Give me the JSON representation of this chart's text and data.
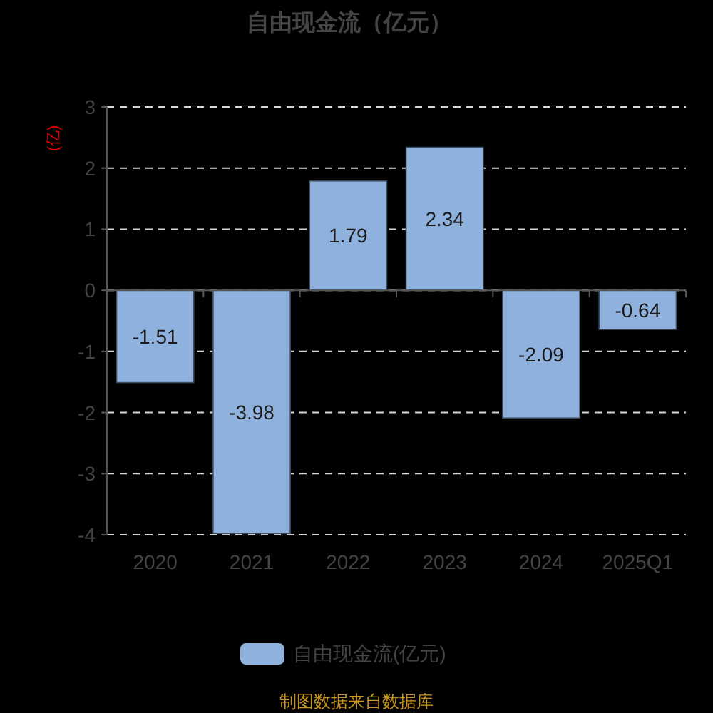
{
  "chart_data": {
    "type": "bar",
    "title": "自由现金流（亿元）",
    "ylabel": "(亿)",
    "categories": [
      "2020",
      "2021",
      "2022",
      "2023",
      "2024",
      "2025Q1"
    ],
    "series": [
      {
        "name": "自由现金流(亿元)",
        "color": "#8eb1de",
        "values": [
          -1.51,
          -3.98,
          1.79,
          2.34,
          -2.09,
          -0.64
        ]
      }
    ],
    "ylim": [
      -4,
      3
    ],
    "yticks": [
      -4,
      -3,
      -2,
      -1,
      0,
      1,
      2,
      3
    ],
    "grid": "y",
    "legend": "bottom",
    "data_labels": true,
    "annotations": [
      "制图数据来自数据库"
    ]
  }
}
